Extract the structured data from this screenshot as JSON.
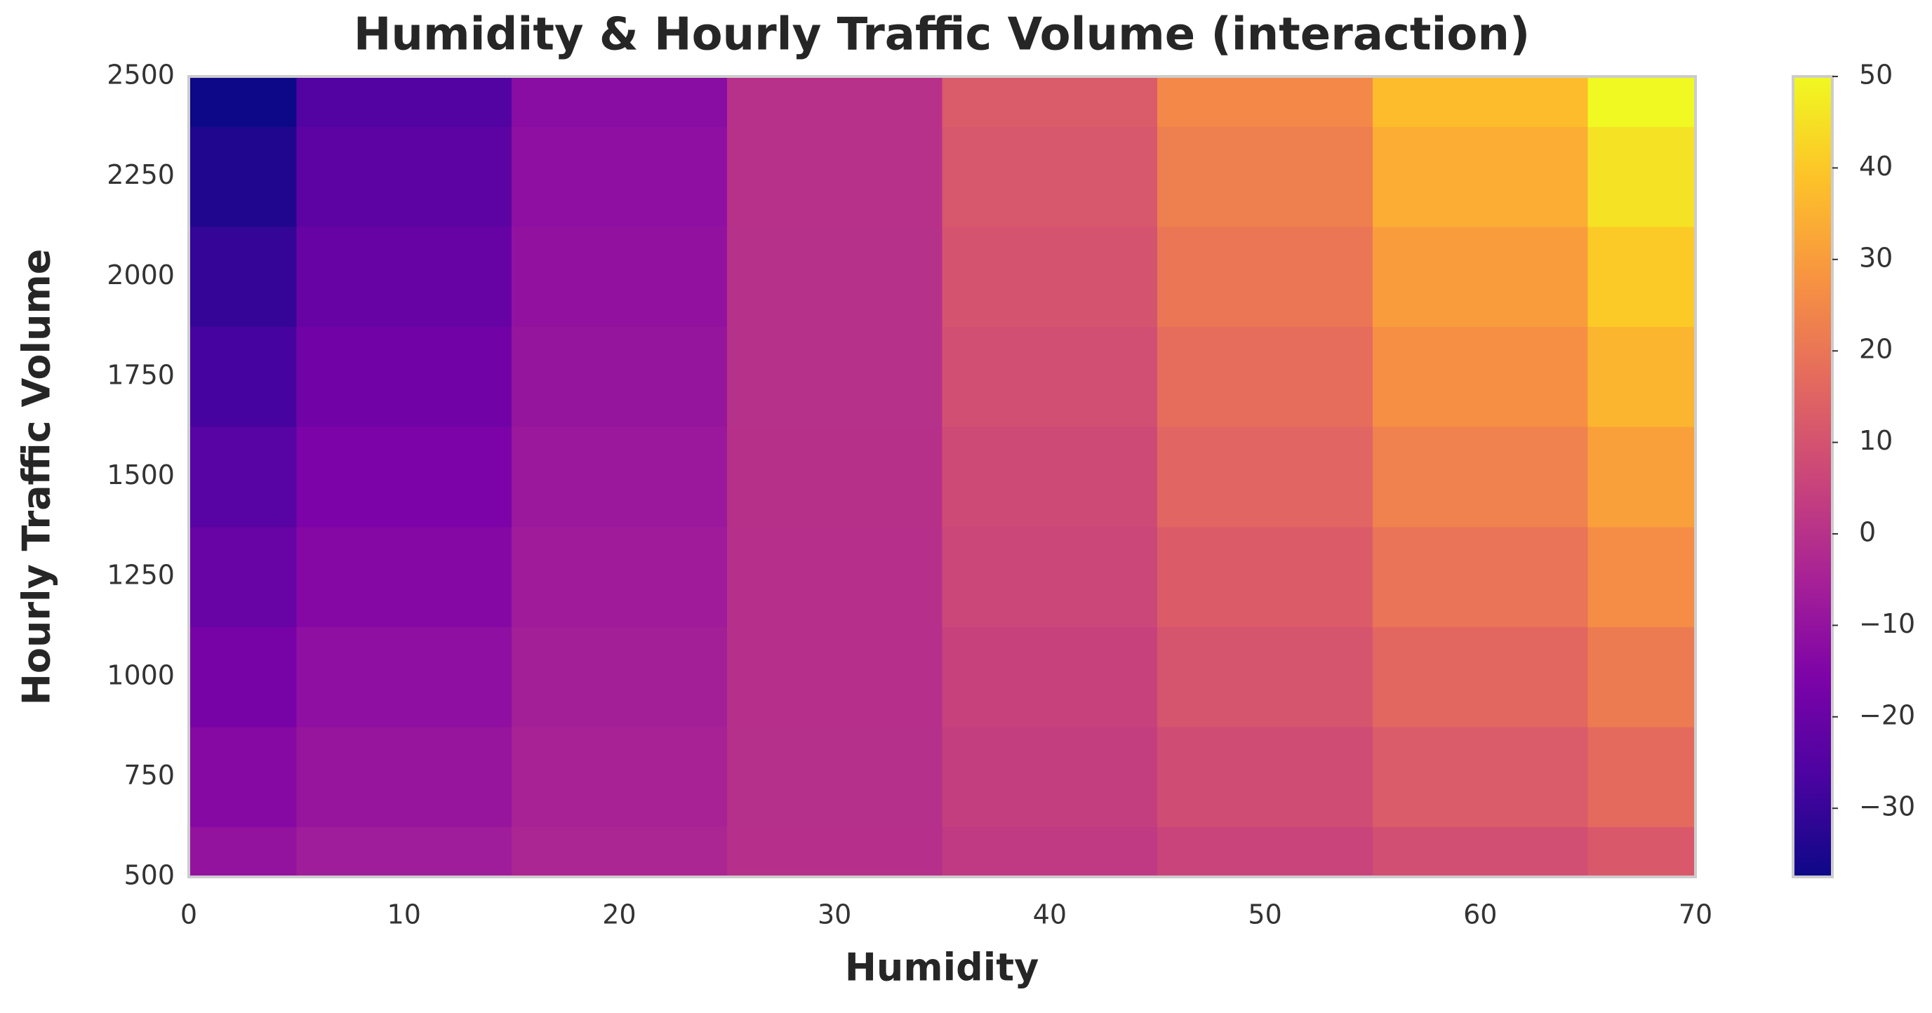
{
  "chart_data": {
    "type": "heatmap",
    "title": "Humidity & Hourly Traffic Volume (interaction)",
    "x_label": "Humidity",
    "y_label": "Hourly Traffic Volume",
    "x": [
      0,
      10,
      20,
      30,
      40,
      50,
      60,
      70
    ],
    "y": [
      500,
      750,
      1000,
      1250,
      1500,
      1750,
      2000,
      2250,
      2500
    ],
    "values": [
      [
        -10,
        -6.9,
        -3.7,
        -0.6,
        2.6,
        5.7,
        8.9,
        12
      ],
      [
        -13.4,
        -9.1,
        -4.8,
        -0.5,
        3.8,
        8.1,
        12.4,
        16.8
      ],
      [
        -16.9,
        -11.4,
        -5.9,
        -0.4,
        5.1,
        10.5,
        16.0,
        21.5
      ],
      [
        -20.3,
        -13.7,
        -7.0,
        -0.4,
        6.3,
        12.9,
        19.6,
        26.3
      ],
      [
        -23.8,
        -15.9,
        -8.1,
        -0.3,
        7.5,
        15.4,
        23.2,
        31.0
      ],
      [
        -27.2,
        -18.2,
        -9.2,
        -0.2,
        8.8,
        17.8,
        26.8,
        35.8
      ],
      [
        -30.6,
        -20.5,
        -10.3,
        -0.2,
        10.0,
        20.2,
        30.3,
        40.5
      ],
      [
        -34.1,
        -22.7,
        -11.4,
        -0.1,
        11.3,
        22.6,
        33.9,
        45.3
      ],
      [
        -37.5,
        -25,
        -12.5,
        0,
        12.5,
        25,
        37.5,
        50
      ]
    ],
    "xlim": [
      0,
      70
    ],
    "xticks": [
      0,
      10,
      20,
      30,
      40,
      50,
      60,
      70
    ],
    "ylim": [
      500,
      2500
    ],
    "yticks": [
      500,
      750,
      1000,
      1250,
      1500,
      1750,
      2000,
      2250,
      2500
    ],
    "colormap": "plasma",
    "zlim": [
      -37.5,
      50
    ],
    "zticks": [
      {
        "value": -30,
        "label": "−30"
      },
      {
        "value": -20,
        "label": "−20"
      },
      {
        "value": -10,
        "label": "−10"
      },
      0,
      10,
      20,
      30,
      40,
      50
    ]
  }
}
